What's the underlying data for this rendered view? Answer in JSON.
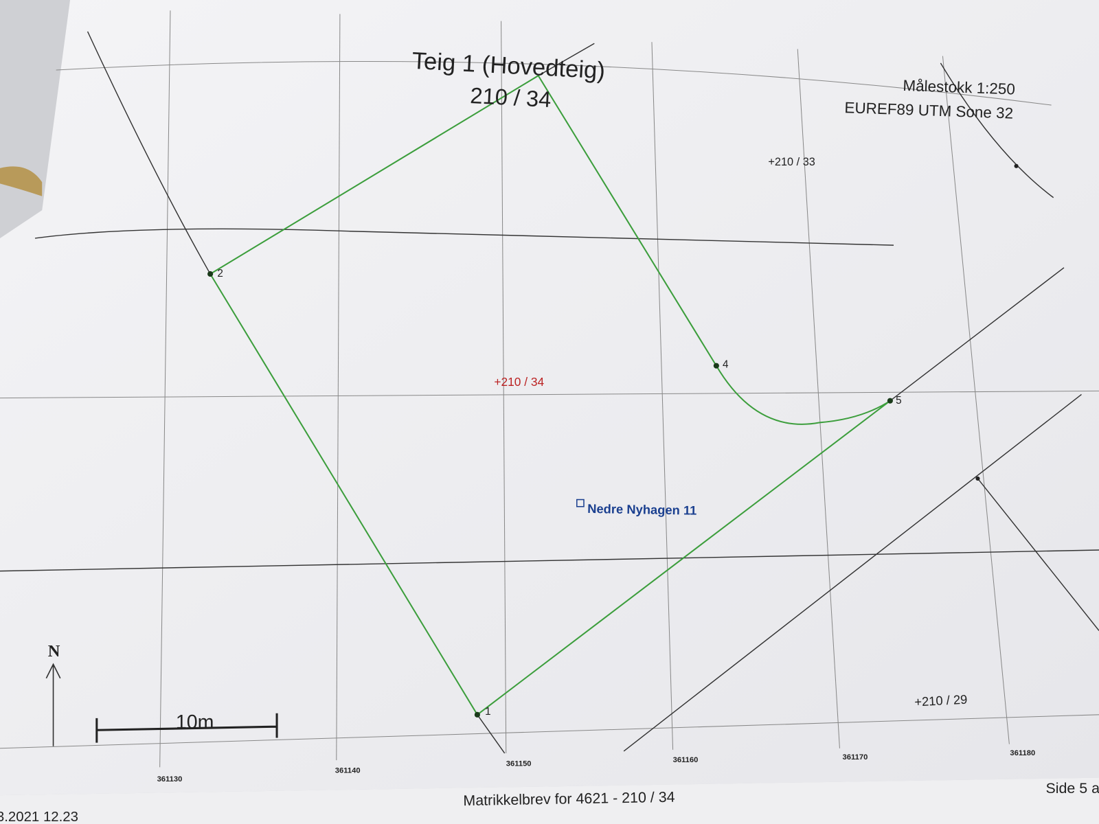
{
  "header": {
    "title": "Teig 1 (Hovedteig)",
    "parcel": "210 / 34",
    "scale": "Målestokk 1:250",
    "crs": "EUREF89 UTM Sone 32"
  },
  "map": {
    "parcel_labels": [
      "210 / 33",
      "210 / 34",
      "210 / 29"
    ],
    "address": "Nedre Nyhagen 11",
    "points": [
      "1",
      "2",
      "4",
      "5"
    ],
    "scale_bar": "10m",
    "north": "N",
    "easting_labels": [
      "361130",
      "361140",
      "361150",
      "361160",
      "361170",
      "361180"
    ]
  },
  "footer": {
    "title": "Matrikkelbrev for 4621 - 210 / 34",
    "page": "Side 5 a",
    "date": "3.2021 12.23"
  }
}
